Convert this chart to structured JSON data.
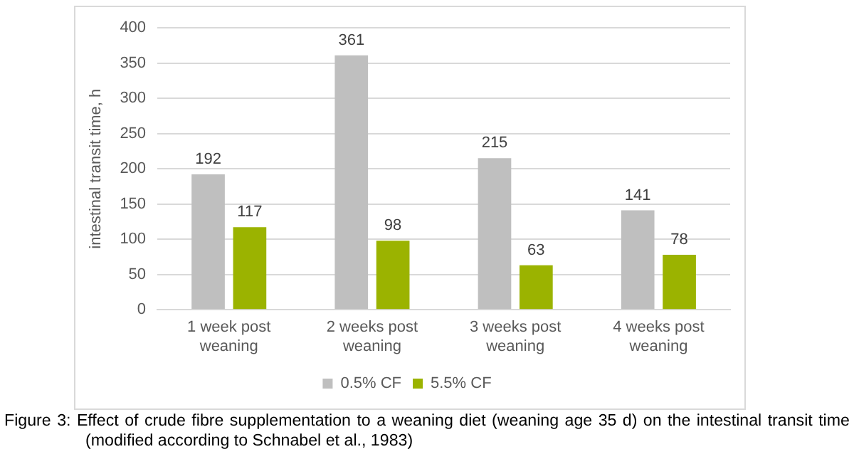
{
  "chart_data": {
    "type": "bar",
    "ylabel": "intestinal transit time, h",
    "categories": [
      "1 week post weaning",
      "2 weeks post weaning",
      "3 weeks post weaning",
      "4 weeks post weaning"
    ],
    "series": [
      {
        "name": "0.5% CF",
        "color": "#bfbfbf",
        "values": [
          192,
          361,
          215,
          141
        ]
      },
      {
        "name": "5.5% CF",
        "color": "#9bb300",
        "values": [
          117,
          98,
          63,
          78
        ]
      }
    ],
    "ylim": [
      0,
      400
    ],
    "yticks": [
      0,
      50,
      100,
      150,
      200,
      250,
      300,
      350,
      400
    ],
    "grid": "y",
    "legend": "bottom",
    "data_labels": true,
    "annotations": [
      "Figure 3: Effect of crude fibre supplementation to a weaning diet (weaning age 35 d) on the intestinal transit time (modified according to Schnabel et al., 1983)"
    ]
  }
}
